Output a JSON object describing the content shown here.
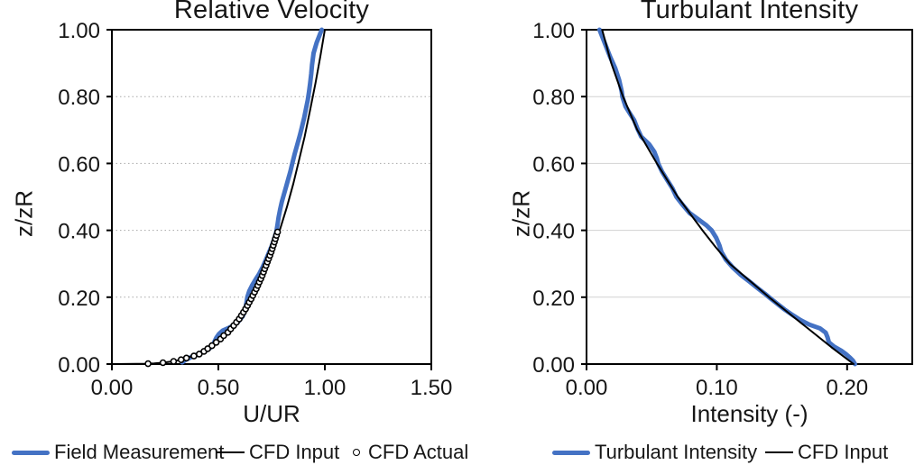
{
  "figure": {
    "background": "#ffffff",
    "text_color": "#161616",
    "axis_color": "#000000"
  },
  "chart_data": [
    {
      "type": "line",
      "title": "Relative Velocity",
      "xlabel": "U/UR",
      "ylabel": "z/zR",
      "xlim": [
        0,
        1.5
      ],
      "ylim": [
        0,
        1
      ],
      "grid": {
        "color": "#a8a8a8",
        "dash": "1.5 3",
        "width": 1
      },
      "xticks": {
        "values": [
          0,
          0.5,
          1.0,
          1.5
        ],
        "labels": [
          "0.00",
          "0.50",
          "1.00",
          "1.50"
        ]
      },
      "yticks": {
        "values": [
          0,
          0.2,
          0.4,
          0.6,
          0.8,
          1.0
        ],
        "labels": [
          "0.00",
          "0.20",
          "0.40",
          "0.60",
          "0.80",
          "1.00"
        ]
      },
      "legend_position": "bottom",
      "series": [
        {
          "name": "Field Measurement",
          "type": "line",
          "color": "#4472C4",
          "width": 5,
          "points": [
            [
              0.33,
              0.005
            ],
            [
              0.345,
              0.012
            ],
            [
              0.37,
              0.02
            ],
            [
              0.4,
              0.028
            ],
            [
              0.425,
              0.035
            ],
            [
              0.455,
              0.045
            ],
            [
              0.468,
              0.052
            ],
            [
              0.478,
              0.062
            ],
            [
              0.49,
              0.078
            ],
            [
              0.503,
              0.09
            ],
            [
              0.52,
              0.1
            ],
            [
              0.545,
              0.107
            ],
            [
              0.57,
              0.115
            ],
            [
              0.595,
              0.128
            ],
            [
              0.613,
              0.142
            ],
            [
              0.623,
              0.155
            ],
            [
              0.628,
              0.17
            ],
            [
              0.632,
              0.185
            ],
            [
              0.636,
              0.2
            ],
            [
              0.645,
              0.218
            ],
            [
              0.658,
              0.235
            ],
            [
              0.675,
              0.253
            ],
            [
              0.692,
              0.27
            ],
            [
              0.708,
              0.29
            ],
            [
              0.722,
              0.31
            ],
            [
              0.735,
              0.33
            ],
            [
              0.75,
              0.352
            ],
            [
              0.762,
              0.373
            ],
            [
              0.772,
              0.395
            ],
            [
              0.778,
              0.418
            ],
            [
              0.783,
              0.44
            ],
            [
              0.79,
              0.462
            ],
            [
              0.798,
              0.485
            ],
            [
              0.808,
              0.508
            ],
            [
              0.818,
              0.53
            ],
            [
              0.828,
              0.553
            ],
            [
              0.838,
              0.576
            ],
            [
              0.847,
              0.6
            ],
            [
              0.858,
              0.628
            ],
            [
              0.87,
              0.655
            ],
            [
              0.882,
              0.683
            ],
            [
              0.893,
              0.71
            ],
            [
              0.903,
              0.737
            ],
            [
              0.912,
              0.765
            ],
            [
              0.92,
              0.79
            ],
            [
              0.926,
              0.815
            ],
            [
              0.931,
              0.84
            ],
            [
              0.936,
              0.868
            ],
            [
              0.94,
              0.895
            ],
            [
              0.944,
              0.915
            ],
            [
              0.947,
              0.93
            ],
            [
              0.962,
              0.962
            ],
            [
              0.985,
              1.0
            ]
          ]
        },
        {
          "name": "CFD Input",
          "type": "line",
          "color": "#000000",
          "width": 2,
          "points": [
            [
              0,
              0
            ],
            [
              0.166,
              0.001
            ],
            [
              0.199,
              0.002
            ],
            [
              0.238,
              0.004
            ],
            [
              0.275,
              0.007
            ],
            [
              0.317,
              0.012
            ],
            [
              0.361,
              0.02
            ],
            [
              0.402,
              0.03
            ],
            [
              0.459,
              0.05
            ],
            [
              0.501,
              0.07
            ],
            [
              0.55,
              0.1
            ],
            [
              0.6,
              0.14
            ],
            [
              0.64,
              0.18
            ],
            [
              0.683,
              0.23
            ],
            [
              0.718,
              0.28
            ],
            [
              0.755,
              0.34
            ],
            [
              0.788,
              0.4
            ],
            [
              0.822,
              0.47
            ],
            [
              0.852,
              0.54
            ],
            [
              0.879,
              0.61
            ],
            [
              0.905,
              0.68
            ],
            [
              0.931,
              0.76
            ],
            [
              0.956,
              0.84
            ],
            [
              0.979,
              0.92
            ],
            [
              1.0,
              1.0
            ]
          ]
        },
        {
          "name": "CFD Actual",
          "type": "scatter",
          "color": "#000000",
          "marker": "circle-open",
          "points": [
            [
              0.17,
              0.001
            ],
            [
              0.24,
              0.004
            ],
            [
              0.29,
              0.008
            ],
            [
              0.325,
              0.013
            ],
            [
              0.35,
              0.018
            ],
            [
              0.385,
              0.024
            ],
            [
              0.41,
              0.03
            ],
            [
              0.432,
              0.038
            ],
            [
              0.45,
              0.046
            ],
            [
              0.47,
              0.055
            ],
            [
              0.49,
              0.065
            ],
            [
              0.51,
              0.075
            ],
            [
              0.525,
              0.085
            ],
            [
              0.545,
              0.095
            ],
            [
              0.558,
              0.105
            ],
            [
              0.572,
              0.115
            ],
            [
              0.585,
              0.125
            ],
            [
              0.598,
              0.135
            ],
            [
              0.608,
              0.145
            ],
            [
              0.618,
              0.155
            ],
            [
              0.628,
              0.165
            ],
            [
              0.637,
              0.175
            ],
            [
              0.645,
              0.185
            ],
            [
              0.654,
              0.195
            ],
            [
              0.662,
              0.205
            ],
            [
              0.67,
              0.215
            ],
            [
              0.678,
              0.225
            ],
            [
              0.685,
              0.235
            ],
            [
              0.692,
              0.245
            ],
            [
              0.699,
              0.255
            ],
            [
              0.706,
              0.265
            ],
            [
              0.712,
              0.275
            ],
            [
              0.718,
              0.285
            ],
            [
              0.724,
              0.295
            ],
            [
              0.73,
              0.305
            ],
            [
              0.736,
              0.315
            ],
            [
              0.742,
              0.325
            ],
            [
              0.748,
              0.335
            ],
            [
              0.753,
              0.345
            ],
            [
              0.758,
              0.355
            ],
            [
              0.763,
              0.365
            ],
            [
              0.768,
              0.375
            ],
            [
              0.773,
              0.385
            ],
            [
              0.778,
              0.395
            ]
          ]
        }
      ]
    },
    {
      "type": "line",
      "title": "Turbulant Intensity",
      "xlabel": "Intensity (-)",
      "ylabel": "z/zR",
      "xlim": [
        0,
        0.25
      ],
      "ylim": [
        0,
        1
      ],
      "grid": {
        "color": "#d2d2d2",
        "dash": "none",
        "width": 1
      },
      "xticks": {
        "values": [
          0,
          0.1,
          0.2
        ],
        "labels": [
          "0.00",
          "0.10",
          "0.20"
        ]
      },
      "yticks": {
        "values": [
          0,
          0.2,
          0.4,
          0.6,
          0.8,
          1.0
        ],
        "labels": [
          "0.00",
          "0.20",
          "0.40",
          "0.60",
          "0.80",
          "1.00"
        ]
      },
      "legend_position": "bottom",
      "series": [
        {
          "name": "Turbulant Intensity",
          "type": "line",
          "color": "#4472C4",
          "width": 5,
          "points": [
            [
              0.01,
              1.0
            ],
            [
              0.014,
              0.96
            ],
            [
              0.018,
              0.92
            ],
            [
              0.022,
              0.885
            ],
            [
              0.025,
              0.85
            ],
            [
              0.027,
              0.815
            ],
            [
              0.0275,
              0.8
            ],
            [
              0.03,
              0.77
            ],
            [
              0.034,
              0.745
            ],
            [
              0.0365,
              0.73
            ],
            [
              0.039,
              0.705
            ],
            [
              0.042,
              0.68
            ],
            [
              0.048,
              0.658
            ],
            [
              0.052,
              0.635
            ],
            [
              0.054,
              0.615
            ],
            [
              0.055,
              0.6
            ],
            [
              0.058,
              0.575
            ],
            [
              0.062,
              0.55
            ],
            [
              0.066,
              0.525
            ],
            [
              0.069,
              0.5
            ],
            [
              0.074,
              0.475
            ],
            [
              0.079,
              0.452
            ],
            [
              0.086,
              0.432
            ],
            [
              0.092,
              0.415
            ],
            [
              0.096,
              0.4
            ],
            [
              0.0995,
              0.378
            ],
            [
              0.102,
              0.355
            ],
            [
              0.1035,
              0.335
            ],
            [
              0.107,
              0.312
            ],
            [
              0.112,
              0.29
            ],
            [
              0.118,
              0.268
            ],
            [
              0.125,
              0.247
            ],
            [
              0.131,
              0.228
            ],
            [
              0.137,
              0.21
            ],
            [
              0.141,
              0.197
            ],
            [
              0.1465,
              0.18
            ],
            [
              0.152,
              0.163
            ],
            [
              0.158,
              0.147
            ],
            [
              0.164,
              0.132
            ],
            [
              0.171,
              0.118
            ],
            [
              0.179,
              0.107
            ],
            [
              0.1835,
              0.094
            ],
            [
              0.185,
              0.08
            ],
            [
              0.186,
              0.065
            ],
            [
              0.19,
              0.052
            ],
            [
              0.1955,
              0.04
            ],
            [
              0.199,
              0.03
            ],
            [
              0.202,
              0.02
            ],
            [
              0.2045,
              0.01
            ],
            [
              0.206,
              0.0
            ]
          ]
        },
        {
          "name": "CFD Input",
          "type": "line",
          "color": "#000000",
          "width": 2,
          "points": [
            [
              0.012,
              1.0
            ],
            [
              0.019,
              0.9
            ],
            [
              0.028,
              0.8
            ],
            [
              0.039,
              0.7
            ],
            [
              0.054,
              0.6
            ],
            [
              0.07,
              0.5
            ],
            [
              0.089,
              0.4
            ],
            [
              0.099,
              0.35
            ],
            [
              0.11,
              0.3
            ],
            [
              0.125,
              0.25
            ],
            [
              0.14,
              0.2
            ],
            [
              0.156,
              0.15
            ],
            [
              0.172,
              0.1
            ],
            [
              0.188,
              0.05
            ],
            [
              0.205,
              0.0
            ]
          ]
        }
      ]
    }
  ]
}
